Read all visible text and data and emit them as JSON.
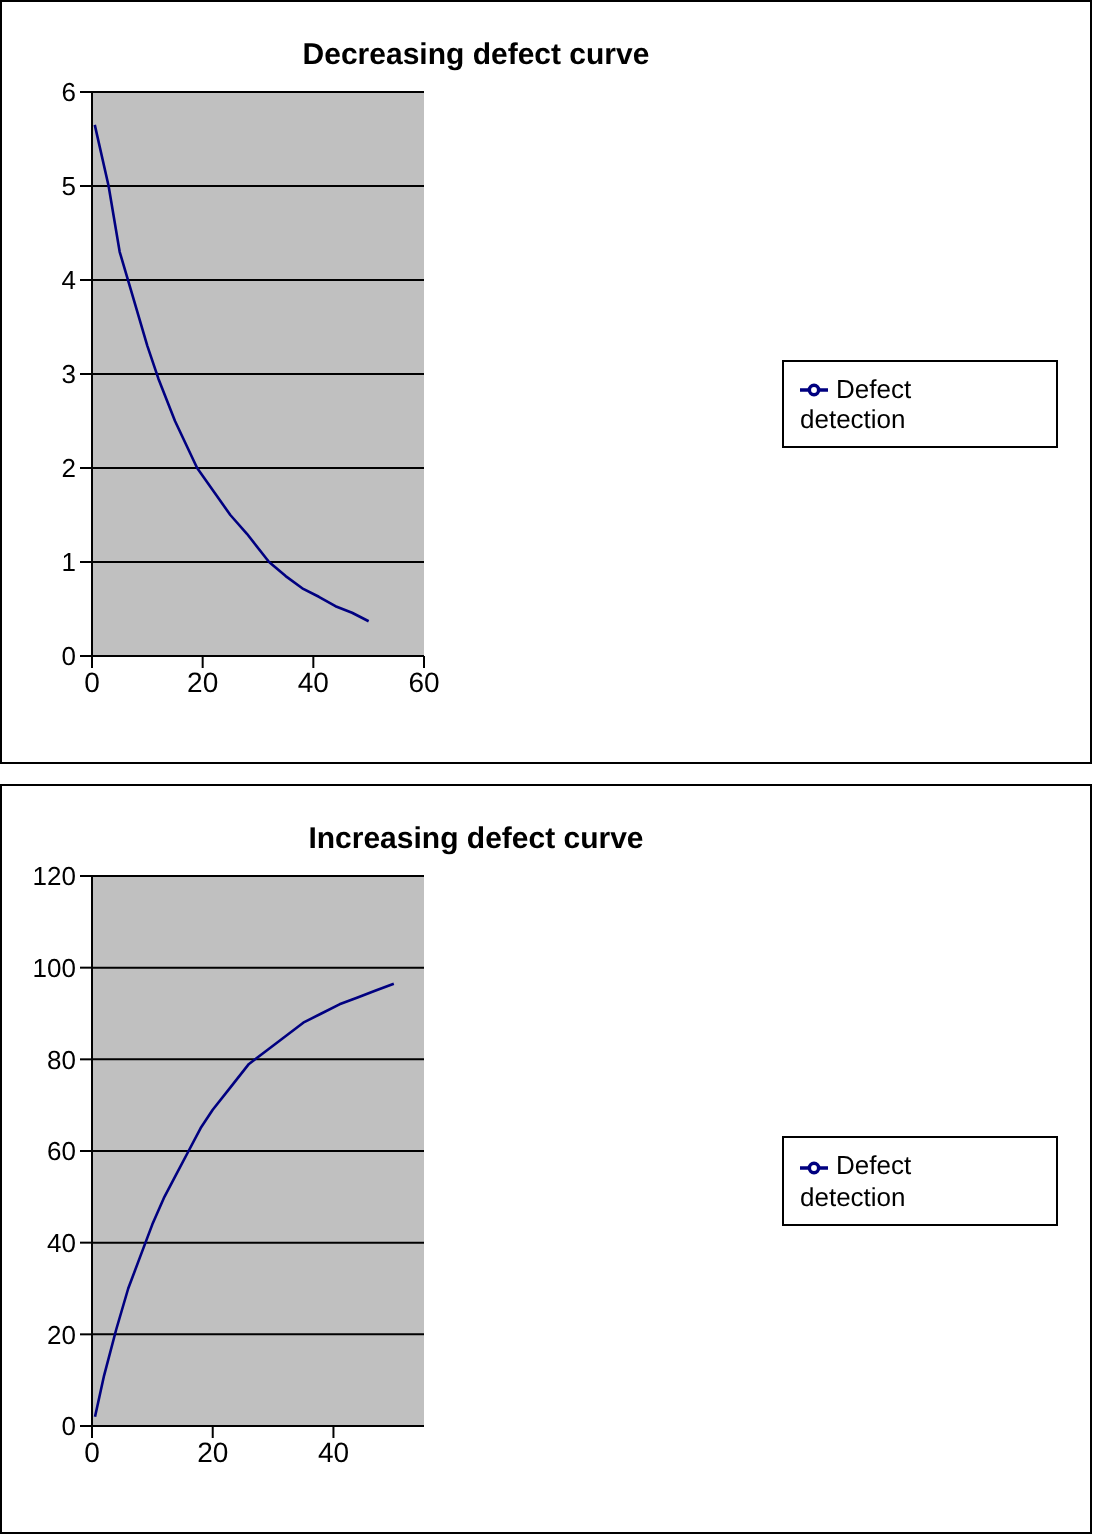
{
  "chart_data": [
    {
      "type": "line",
      "title": "Decreasing defect curve",
      "xlim": [
        0,
        60
      ],
      "xticks": [
        0,
        20,
        40,
        60
      ],
      "ylim": [
        0,
        6
      ],
      "yticks": [
        0,
        1,
        2,
        3,
        4,
        5,
        6
      ],
      "grid": "y",
      "legend": "right",
      "marker": "none",
      "series": [
        {
          "name": "Defect detection",
          "color": "#000080",
          "x": [
            0.5,
            3,
            5,
            7,
            10,
            12,
            15,
            17,
            19,
            22,
            25,
            28,
            32,
            35,
            38,
            41,
            44,
            47,
            50
          ],
          "values": [
            5.65,
            5.0,
            4.3,
            3.9,
            3.3,
            2.95,
            2.5,
            2.25,
            2.0,
            1.75,
            1.5,
            1.3,
            1.0,
            0.85,
            0.72,
            0.63,
            0.53,
            0.46,
            0.37
          ]
        }
      ]
    },
    {
      "type": "line",
      "title": "Increasing defect curve",
      "xlim": [
        0,
        55
      ],
      "xticks": [
        0,
        20,
        40
      ],
      "ylim": [
        0,
        120
      ],
      "yticks": [
        0,
        20,
        40,
        60,
        80,
        100,
        120
      ],
      "grid": "y",
      "legend": "right",
      "marker": "none",
      "series": [
        {
          "name": "Defect detection",
          "color": "#000080",
          "x": [
            0.5,
            2,
            4,
            6,
            8,
            10,
            12,
            14,
            16,
            18,
            20,
            23,
            26,
            29,
            32,
            35,
            38,
            41,
            44,
            47,
            50
          ],
          "values": [
            2,
            11,
            21,
            30,
            37,
            44,
            50,
            55,
            60,
            65,
            69,
            74,
            79,
            82,
            85,
            88,
            90,
            92,
            93.5,
            95,
            96.5
          ]
        }
      ]
    }
  ]
}
